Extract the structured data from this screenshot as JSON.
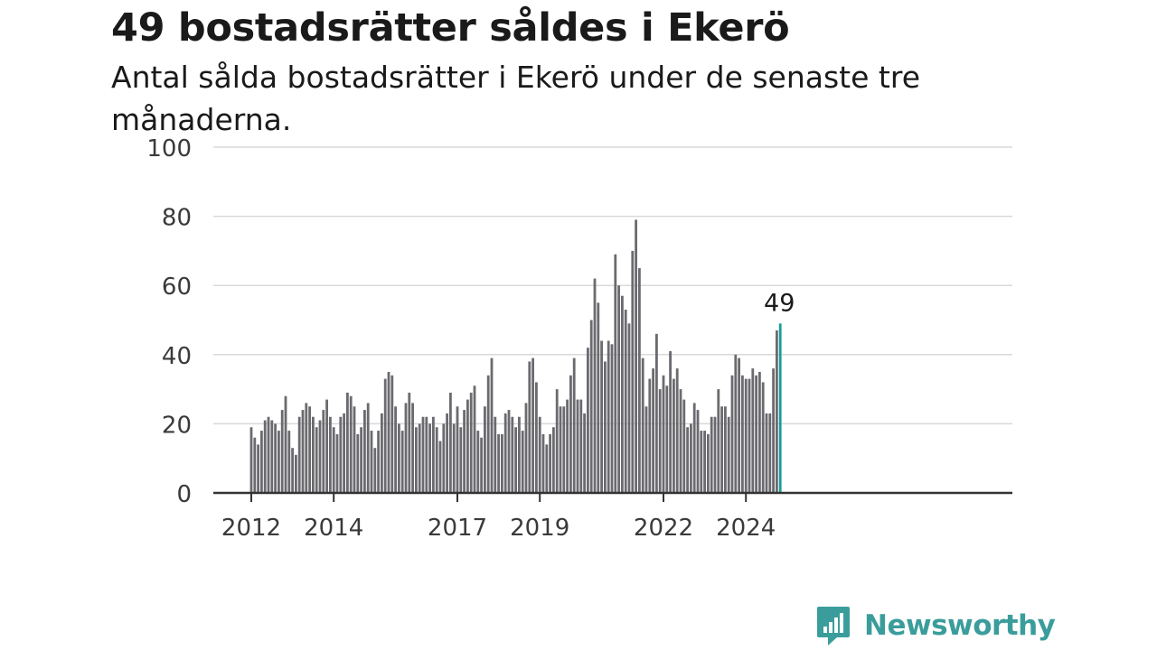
{
  "header": {
    "title": "49 bostadsrätter såldes i Ekerö",
    "subtitle": "Antal sålda bostadsrätter i Ekerö under de senaste tre månaderna."
  },
  "brand": {
    "name": "Newsworthy",
    "color": "#3a9d9b",
    "icon": "newsworthy-logo-icon"
  },
  "chart_data": {
    "type": "bar",
    "title": "49 bostadsrätter såldes i Ekerö",
    "subtitle": "Antal sålda bostadsrätter i Ekerö under de senaste tre månaderna.",
    "xlabel": "",
    "ylabel": "",
    "ylim": [
      0,
      100
    ],
    "yticks": [
      0,
      20,
      40,
      60,
      80,
      100
    ],
    "xtick_labels": [
      {
        "label": "2012",
        "bar_index": 0
      },
      {
        "label": "2014",
        "bar_index": 24
      },
      {
        "label": "2017",
        "bar_index": 60
      },
      {
        "label": "2019",
        "bar_index": 84
      },
      {
        "label": "2022",
        "bar_index": 120
      },
      {
        "label": "2024",
        "bar_index": 144
      }
    ],
    "grid": true,
    "bar_color": "#6b6a6f",
    "highlight_color": "#1a9c98",
    "highlight_label": "49",
    "period": "rolling three-month total, monthly",
    "values": [
      19,
      16,
      14,
      18,
      21,
      22,
      21,
      20,
      18,
      24,
      28,
      18,
      13,
      11,
      22,
      24,
      26,
      25,
      22,
      19,
      21,
      24,
      27,
      22,
      19,
      17,
      22,
      23,
      29,
      28,
      25,
      17,
      19,
      24,
      26,
      18,
      13,
      18,
      23,
      33,
      35,
      34,
      25,
      20,
      18,
      26,
      29,
      26,
      19,
      20,
      22,
      22,
      20,
      22,
      19,
      15,
      20,
      23,
      29,
      20,
      25,
      19,
      24,
      27,
      29,
      31,
      18,
      16,
      25,
      34,
      39,
      22,
      17,
      17,
      23,
      24,
      22,
      19,
      22,
      18,
      26,
      38,
      39,
      32,
      22,
      17,
      14,
      17,
      19,
      30,
      25,
      25,
      27,
      34,
      39,
      27,
      27,
      23,
      42,
      50,
      62,
      55,
      44,
      38,
      44,
      43,
      69,
      60,
      57,
      53,
      49,
      70,
      79,
      65,
      39,
      25,
      33,
      36,
      46,
      30,
      34,
      31,
      41,
      33,
      36,
      30,
      27,
      19,
      20,
      26,
      24,
      18,
      18,
      17,
      22,
      22,
      30,
      25,
      25,
      22,
      34,
      40,
      39,
      34,
      33,
      33,
      36,
      34,
      35,
      32,
      23,
      23,
      36,
      47,
      49
    ]
  }
}
